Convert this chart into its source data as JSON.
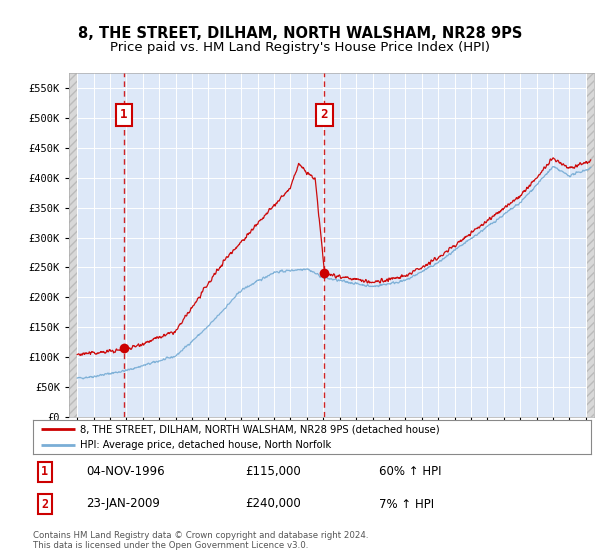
{
  "title": "8, THE STREET, DILHAM, NORTH WALSHAM, NR28 9PS",
  "subtitle": "Price paid vs. HM Land Registry's House Price Index (HPI)",
  "ylim": [
    0,
    575000
  ],
  "yticks": [
    0,
    50000,
    100000,
    150000,
    200000,
    250000,
    300000,
    350000,
    400000,
    450000,
    500000,
    550000
  ],
  "xlim_start": 1993.5,
  "xlim_end": 2025.5,
  "sale1_date": 1996.84,
  "sale1_price": 115000,
  "sale1_label": "1",
  "sale2_date": 2009.07,
  "sale2_price": 240000,
  "sale2_label": "2",
  "red_line_color": "#cc0000",
  "blue_line_color": "#7aaed6",
  "background_color": "#dde8f8",
  "outer_bg": "#ffffff",
  "grid_color": "#ffffff",
  "legend_label_red": "8, THE STREET, DILHAM, NORTH WALSHAM, NR28 9PS (detached house)",
  "legend_label_blue": "HPI: Average price, detached house, North Norfolk",
  "note1_label": "1",
  "note1_date": "04-NOV-1996",
  "note1_price": "£115,000",
  "note1_hpi": "60% ↑ HPI",
  "note2_label": "2",
  "note2_date": "23-JAN-2009",
  "note2_price": "£240,000",
  "note2_hpi": "7% ↑ HPI",
  "footer": "Contains HM Land Registry data © Crown copyright and database right 2024.\nThis data is licensed under the Open Government Licence v3.0.",
  "title_fontsize": 10.5,
  "subtitle_fontsize": 9.5
}
